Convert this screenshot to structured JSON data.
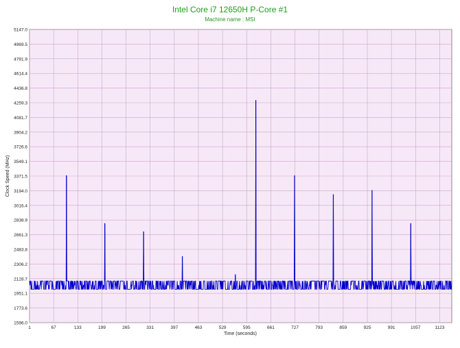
{
  "chart_data": {
    "type": "line",
    "title": "Intel Core i7 12650H P-Core #1",
    "subtitle": "Machine name : MSI",
    "xlabel": "Time (seconds)",
    "ylabel": "Clock Speed (MHz)",
    "xlim": [
      1,
      1156
    ],
    "ylim": [
      1596.0,
      5147.0
    ],
    "grid": true,
    "legend": "none",
    "x_ticks": [
      1,
      67,
      133,
      199,
      265,
      331,
      397,
      463,
      529,
      595,
      661,
      727,
      793,
      859,
      925,
      991,
      1057,
      1123
    ],
    "y_ticks": [
      "1596.0",
      "1773.6",
      "1951.1",
      "2128.7",
      "2306.2",
      "2483.8",
      "2661.3",
      "2838.9",
      "3016.4",
      "3194.0",
      "3371.5",
      "3549.1",
      "3726.6",
      "3904.2",
      "4081.7",
      "4259.3",
      "4436.8",
      "4614.4",
      "4791.9",
      "4969.5",
      "5147.0"
    ],
    "series": [
      {
        "baseline_high": 2100,
        "baseline_low": 2000,
        "spikes": [
          {
            "x": 102,
            "y": 3380
          },
          {
            "x": 207,
            "y": 2800
          },
          {
            "x": 313,
            "y": 2700
          },
          {
            "x": 419,
            "y": 2400
          },
          {
            "x": 564,
            "y": 2180
          },
          {
            "x": 620,
            "y": 4290
          },
          {
            "x": 726,
            "y": 3380
          },
          {
            "x": 832,
            "y": 3150
          },
          {
            "x": 938,
            "y": 3200
          },
          {
            "x": 1044,
            "y": 2800
          }
        ]
      }
    ]
  },
  "colors": {
    "title": "#1e9a1e",
    "plot_bg": "#f7e8f7",
    "grid": "#c9a6c9",
    "line": "#0000c8",
    "axis_text": "#222222"
  }
}
